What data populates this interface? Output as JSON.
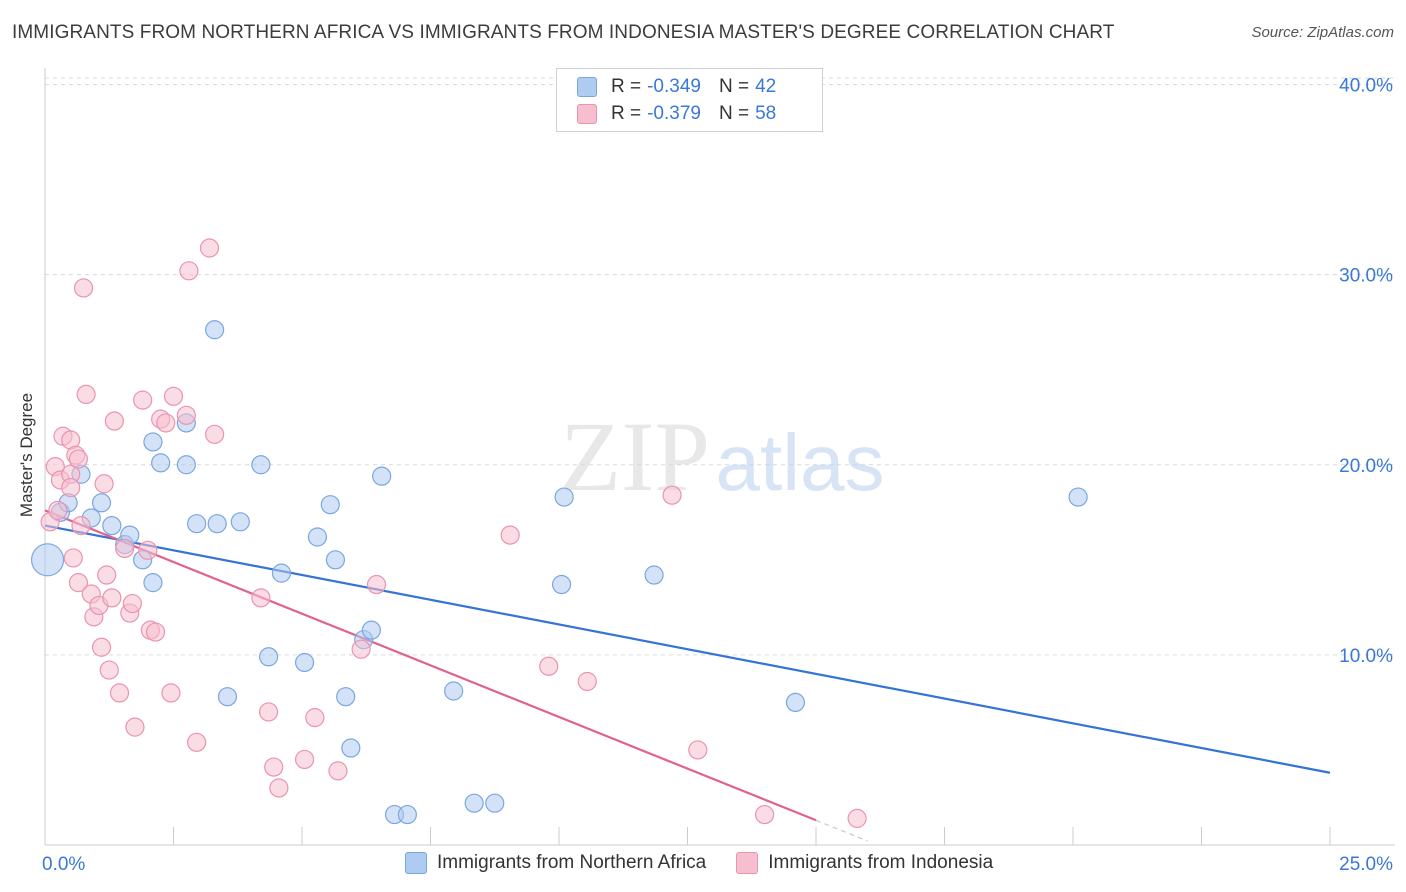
{
  "header": {
    "title": "IMMIGRANTS FROM NORTHERN AFRICA VS IMMIGRANTS FROM INDONESIA MASTER'S DEGREE CORRELATION CHART",
    "source": "Source: ZipAtlas.com"
  },
  "watermark": {
    "zip": "ZIP",
    "atlas": "atlas"
  },
  "legend_top": {
    "rows": [
      {
        "r_label": "R =",
        "r_value": "-0.349",
        "n_label": "N =",
        "n_value": "42"
      },
      {
        "r_label": "R =",
        "r_value": "-0.379",
        "n_label": "N =",
        "n_value": "58"
      }
    ]
  },
  "legend_bottom": {
    "items": [
      {
        "label": "Immigrants from Northern Africa"
      },
      {
        "label": "Immigrants from Indonesia"
      }
    ]
  },
  "colors": {
    "blue_fill": "#aecbf0",
    "blue_stroke": "#7aa7e0",
    "blue_line": "#3574d4",
    "pink_fill": "#f6bfd0",
    "pink_stroke": "#eb93b0",
    "pink_line": "#e0628f",
    "axis_text": "#3a78d6",
    "grid": "#d9d9d9"
  },
  "chart_data": {
    "type": "scatter",
    "title": "IMMIGRANTS FROM NORTHERN AFRICA VS IMMIGRANTS FROM INDONESIA MASTER'S DEGREE CORRELATION CHART",
    "xlabel": "",
    "ylabel": "Master's Degree",
    "xlim": [
      0,
      25
    ],
    "ylim": [
      0,
      40.5
    ],
    "x_tick_labels": [
      "0.0%",
      "25.0%"
    ],
    "y_ticks": [
      10,
      20,
      30,
      40
    ],
    "y_tick_labels": [
      "10.0%",
      "20.0%",
      "30.0%",
      "40.0%"
    ],
    "grid": true,
    "series": [
      {
        "name": "Immigrants from Northern Africa",
        "color": "blue",
        "trend": {
          "x": [
            0,
            25
          ],
          "y": [
            16.8,
            3.8
          ]
        },
        "points": [
          [
            0.05,
            15.0
          ],
          [
            0.3,
            17.5
          ],
          [
            0.45,
            18.0
          ],
          [
            0.7,
            19.5
          ],
          [
            0.9,
            17.2
          ],
          [
            1.1,
            18.0
          ],
          [
            1.3,
            16.8
          ],
          [
            1.55,
            15.8
          ],
          [
            1.65,
            16.3
          ],
          [
            1.9,
            15.0
          ],
          [
            2.1,
            13.8
          ],
          [
            2.1,
            21.2
          ],
          [
            2.25,
            20.1
          ],
          [
            2.75,
            20.0
          ],
          [
            2.75,
            22.2
          ],
          [
            2.95,
            16.9
          ],
          [
            3.3,
            27.1
          ],
          [
            3.35,
            16.9
          ],
          [
            3.55,
            7.8
          ],
          [
            3.8,
            17.0
          ],
          [
            4.2,
            20.0
          ],
          [
            4.35,
            9.9
          ],
          [
            4.6,
            14.3
          ],
          [
            5.05,
            9.6
          ],
          [
            5.3,
            16.2
          ],
          [
            5.55,
            17.9
          ],
          [
            5.65,
            15.0
          ],
          [
            5.85,
            7.8
          ],
          [
            5.95,
            5.1
          ],
          [
            6.2,
            10.8
          ],
          [
            6.35,
            11.3
          ],
          [
            6.55,
            19.4
          ],
          [
            6.8,
            1.6
          ],
          [
            7.05,
            1.6
          ],
          [
            7.95,
            8.1
          ],
          [
            8.35,
            2.2
          ],
          [
            8.75,
            2.2
          ],
          [
            10.05,
            13.7
          ],
          [
            10.1,
            18.3
          ],
          [
            11.85,
            14.2
          ],
          [
            14.6,
            7.5
          ],
          [
            20.1,
            18.3
          ]
        ]
      },
      {
        "name": "Immigrants from Indonesia",
        "color": "pink",
        "trend": {
          "x": [
            0,
            15.0
          ],
          "y": [
            17.6,
            1.3
          ]
        },
        "points": [
          [
            0.1,
            17.0
          ],
          [
            0.2,
            19.9
          ],
          [
            0.25,
            17.6
          ],
          [
            0.3,
            19.2
          ],
          [
            0.35,
            21.5
          ],
          [
            0.5,
            19.5
          ],
          [
            0.5,
            18.8
          ],
          [
            0.5,
            21.3
          ],
          [
            0.55,
            15.1
          ],
          [
            0.6,
            20.5
          ],
          [
            0.65,
            20.3
          ],
          [
            0.65,
            13.8
          ],
          [
            0.7,
            16.8
          ],
          [
            0.75,
            29.3
          ],
          [
            0.8,
            23.7
          ],
          [
            0.9,
            13.2
          ],
          [
            0.95,
            12.0
          ],
          [
            1.05,
            12.6
          ],
          [
            1.1,
            10.4
          ],
          [
            1.15,
            19.0
          ],
          [
            1.2,
            14.2
          ],
          [
            1.25,
            9.2
          ],
          [
            1.3,
            13.0
          ],
          [
            1.35,
            22.3
          ],
          [
            1.45,
            8.0
          ],
          [
            1.55,
            15.6
          ],
          [
            1.65,
            12.2
          ],
          [
            1.7,
            12.7
          ],
          [
            1.75,
            6.2
          ],
          [
            1.9,
            23.4
          ],
          [
            2.0,
            15.5
          ],
          [
            2.05,
            11.3
          ],
          [
            2.15,
            11.2
          ],
          [
            2.25,
            22.4
          ],
          [
            2.35,
            22.2
          ],
          [
            2.45,
            8.0
          ],
          [
            2.5,
            23.6
          ],
          [
            2.75,
            22.6
          ],
          [
            2.8,
            30.2
          ],
          [
            2.95,
            5.4
          ],
          [
            3.2,
            31.4
          ],
          [
            3.3,
            21.6
          ],
          [
            4.2,
            13.0
          ],
          [
            4.35,
            7.0
          ],
          [
            4.45,
            4.1
          ],
          [
            4.55,
            3.0
          ],
          [
            5.05,
            4.5
          ],
          [
            5.25,
            6.7
          ],
          [
            5.7,
            3.9
          ],
          [
            6.15,
            10.3
          ],
          [
            6.45,
            13.7
          ],
          [
            9.05,
            16.3
          ],
          [
            9.8,
            9.4
          ],
          [
            10.55,
            8.6
          ],
          [
            12.2,
            18.4
          ],
          [
            12.7,
            5.0
          ],
          [
            14.0,
            1.6
          ],
          [
            15.8,
            1.4
          ]
        ]
      }
    ]
  }
}
